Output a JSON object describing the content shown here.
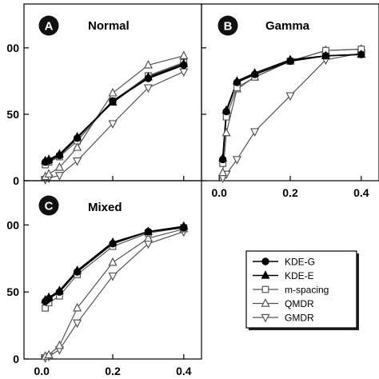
{
  "chart_data": [
    {
      "type": "line",
      "badge": "A",
      "title": "Normal",
      "x": [
        0.01,
        0.02,
        0.05,
        0.1,
        0.2,
        0.3,
        0.4
      ],
      "series": [
        {
          "name": "KDE-G",
          "marker": "circle",
          "values": [
            14,
            15,
            19,
            32,
            60,
            77,
            87
          ]
        },
        {
          "name": "KDE-E",
          "marker": "triangle-up",
          "values": [
            15,
            16,
            20,
            33,
            59,
            78,
            88
          ]
        },
        {
          "name": "m-spacing",
          "marker": "square",
          "values": [
            12,
            14,
            18,
            30,
            60,
            79,
            89
          ]
        },
        {
          "name": "QMDR",
          "marker": "triangle-up-open",
          "values": [
            3,
            5,
            10,
            25,
            66,
            87,
            94
          ]
        },
        {
          "name": "GMDR",
          "marker": "triangle-down-open",
          "values": [
            1,
            2,
            4,
            15,
            43,
            70,
            82
          ]
        }
      ]
    },
    {
      "type": "line",
      "badge": "B",
      "title": "Gamma",
      "x": [
        0.01,
        0.02,
        0.05,
        0.1,
        0.2,
        0.3,
        0.4
      ],
      "series": [
        {
          "name": "KDE-G",
          "marker": "circle",
          "values": [
            16,
            52,
            74,
            80,
            90,
            94,
            95
          ]
        },
        {
          "name": "KDE-E",
          "marker": "triangle-up",
          "values": [
            17,
            53,
            75,
            81,
            91,
            94,
            95
          ]
        },
        {
          "name": "m-spacing",
          "marker": "square",
          "values": [
            13,
            48,
            70,
            78,
            90,
            98,
            99
          ]
        },
        {
          "name": "QMDR",
          "marker": "triangle-up-open",
          "values": [
            6,
            36,
            69,
            78,
            90,
            98,
            99
          ]
        },
        {
          "name": "GMDR",
          "marker": "triangle-down-open",
          "values": [
            2,
            5,
            16,
            37,
            64,
            91,
            96
          ]
        }
      ]
    },
    {
      "type": "line",
      "badge": "C",
      "title": "Mixed",
      "x": [
        0.01,
        0.02,
        0.05,
        0.1,
        0.2,
        0.3,
        0.4
      ],
      "series": [
        {
          "name": "KDE-G",
          "marker": "circle",
          "values": [
            43,
            45,
            50,
            65,
            86,
            95,
            98
          ]
        },
        {
          "name": "KDE-E",
          "marker": "triangle-up",
          "values": [
            44,
            46,
            51,
            66,
            87,
            95,
            99
          ]
        },
        {
          "name": "m-spacing",
          "marker": "square",
          "values": [
            38,
            42,
            47,
            63,
            84,
            94,
            98
          ]
        },
        {
          "name": "QMDR",
          "marker": "triangle-up-open",
          "values": [
            2,
            3,
            10,
            38,
            72,
            90,
            97
          ]
        },
        {
          "name": "GMDR",
          "marker": "triangle-down-open",
          "values": [
            1,
            2,
            7,
            27,
            62,
            86,
            95
          ]
        }
      ]
    }
  ],
  "axes": {
    "x_ticks": [
      "0.0",
      "0.2",
      "0.4"
    ],
    "y_ticks": [
      "0",
      "50",
      "00"
    ],
    "xlim": [
      -0.05,
      0.45
    ],
    "ylim": [
      0,
      133
    ]
  },
  "legend": {
    "placement": "bottom-right",
    "entries": [
      "KDE-G",
      "KDE-E",
      "m-spacing",
      "QMDR",
      "GMDR"
    ]
  }
}
